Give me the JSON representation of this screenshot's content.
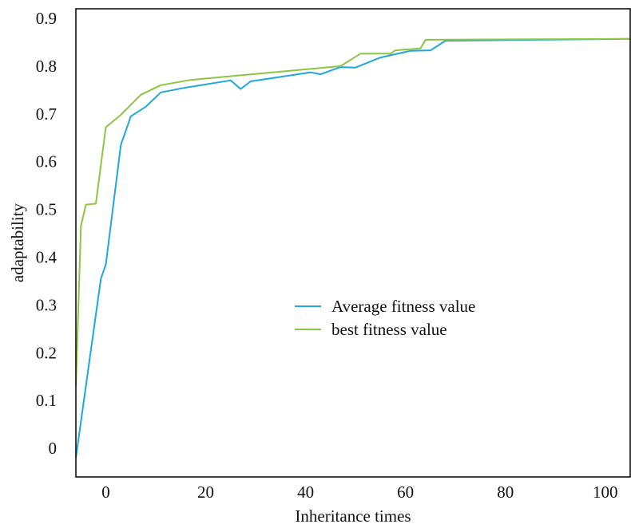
{
  "chart_data": {
    "type": "line",
    "title": "",
    "xlabel": "Inheritance times",
    "ylabel": "adaptability",
    "xlim": [
      -6,
      105
    ],
    "ylim": [
      -0.06,
      0.92
    ],
    "xticks": [
      0,
      20,
      40,
      60,
      80,
      100
    ],
    "yticks": [
      0,
      0.1,
      0.2,
      0.3,
      0.4,
      0.5,
      0.6,
      0.7,
      0.8,
      0.9
    ],
    "grid": false,
    "legend": "center-right",
    "series": [
      {
        "name": "Average fitness value",
        "color": "#1ea7dc",
        "points": [
          [
            -6,
            -0.02
          ],
          [
            -1,
            0.355
          ],
          [
            0,
            0.385
          ],
          [
            3,
            0.635
          ],
          [
            5,
            0.695
          ],
          [
            8,
            0.715
          ],
          [
            11,
            0.745
          ],
          [
            16,
            0.755
          ],
          [
            25,
            0.77
          ],
          [
            27,
            0.752
          ],
          [
            29,
            0.768
          ],
          [
            41,
            0.787
          ],
          [
            43,
            0.783
          ],
          [
            47,
            0.798
          ],
          [
            50,
            0.797
          ],
          [
            55,
            0.818
          ],
          [
            61,
            0.832
          ],
          [
            65,
            0.833
          ],
          [
            68,
            0.853
          ],
          [
            105,
            0.857
          ]
        ]
      },
      {
        "name": "best fitness value",
        "color": "#8cc63f",
        "points": [
          [
            -6,
            0.13
          ],
          [
            -5,
            0.465
          ],
          [
            -4,
            0.51
          ],
          [
            -2,
            0.512
          ],
          [
            0,
            0.672
          ],
          [
            3,
            0.698
          ],
          [
            7,
            0.74
          ],
          [
            11,
            0.76
          ],
          [
            17,
            0.771
          ],
          [
            47,
            0.8
          ],
          [
            51,
            0.826
          ],
          [
            57,
            0.826
          ],
          [
            58,
            0.833
          ],
          [
            63,
            0.837
          ],
          [
            64,
            0.855
          ],
          [
            105,
            0.857
          ]
        ]
      }
    ]
  }
}
